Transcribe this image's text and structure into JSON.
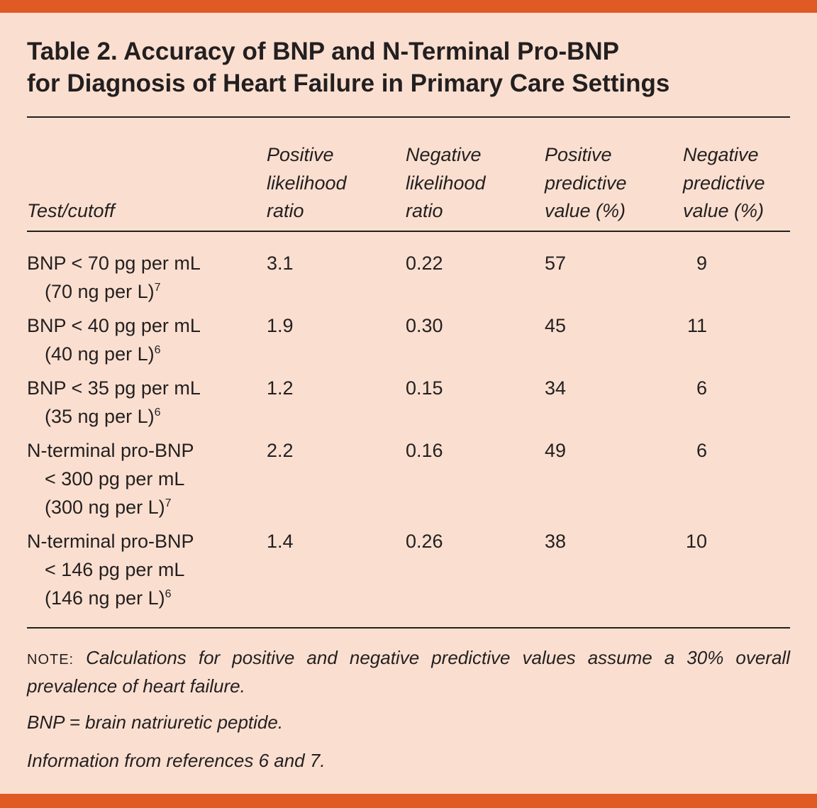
{
  "header": {
    "title": [
      "Table 2. Accuracy of BNP and N-Terminal Pro-BNP",
      "for Diagnosis of Heart Failure in Primary Care Settings"
    ]
  },
  "table": {
    "columns": [
      [
        "Test/cutoff"
      ],
      [
        "Positive",
        "likelihood",
        "ratio"
      ],
      [
        "Negative",
        "likelihood",
        "ratio"
      ],
      [
        "Positive",
        "predictive",
        "value (%)"
      ],
      [
        "Negative",
        "predictive",
        "value (%)"
      ]
    ],
    "rows": [
      {
        "test": [
          "BNP < 70 pg per mL",
          "(70 ng per L)"
        ],
        "ref": "7",
        "values": [
          "3.1",
          "0.22",
          "57",
          "9"
        ]
      },
      {
        "test": [
          "BNP < 40 pg per mL",
          "(40 ng per L)"
        ],
        "ref": "6",
        "values": [
          "1.9",
          "0.30",
          "45",
          "11"
        ]
      },
      {
        "test": [
          "BNP < 35 pg per mL",
          "(35 ng per L)"
        ],
        "ref": "6",
        "values": [
          "1.2",
          "0.15",
          "34",
          "6"
        ]
      },
      {
        "test": [
          "N-terminal pro-BNP",
          "< 300 pg per mL",
          "(300 ng per L)"
        ],
        "ref": "7",
        "values": [
          "2.2",
          "0.16",
          "49",
          "6"
        ]
      },
      {
        "test": [
          "N-terminal pro-BNP",
          "< 146 pg per mL",
          "(146 ng per L)"
        ],
        "ref": "6",
        "values": [
          "1.4",
          "0.26",
          "38",
          "10"
        ]
      }
    ]
  },
  "footnotes": {
    "note_label": "NOTE:",
    "note_text": "Calculations for positive and negative predictive values assume a 30% overall prevalence of heart failure.",
    "abbreviation": "BNP = brain natriuretic peptide.",
    "source": "Information from references 6 and 7."
  }
}
